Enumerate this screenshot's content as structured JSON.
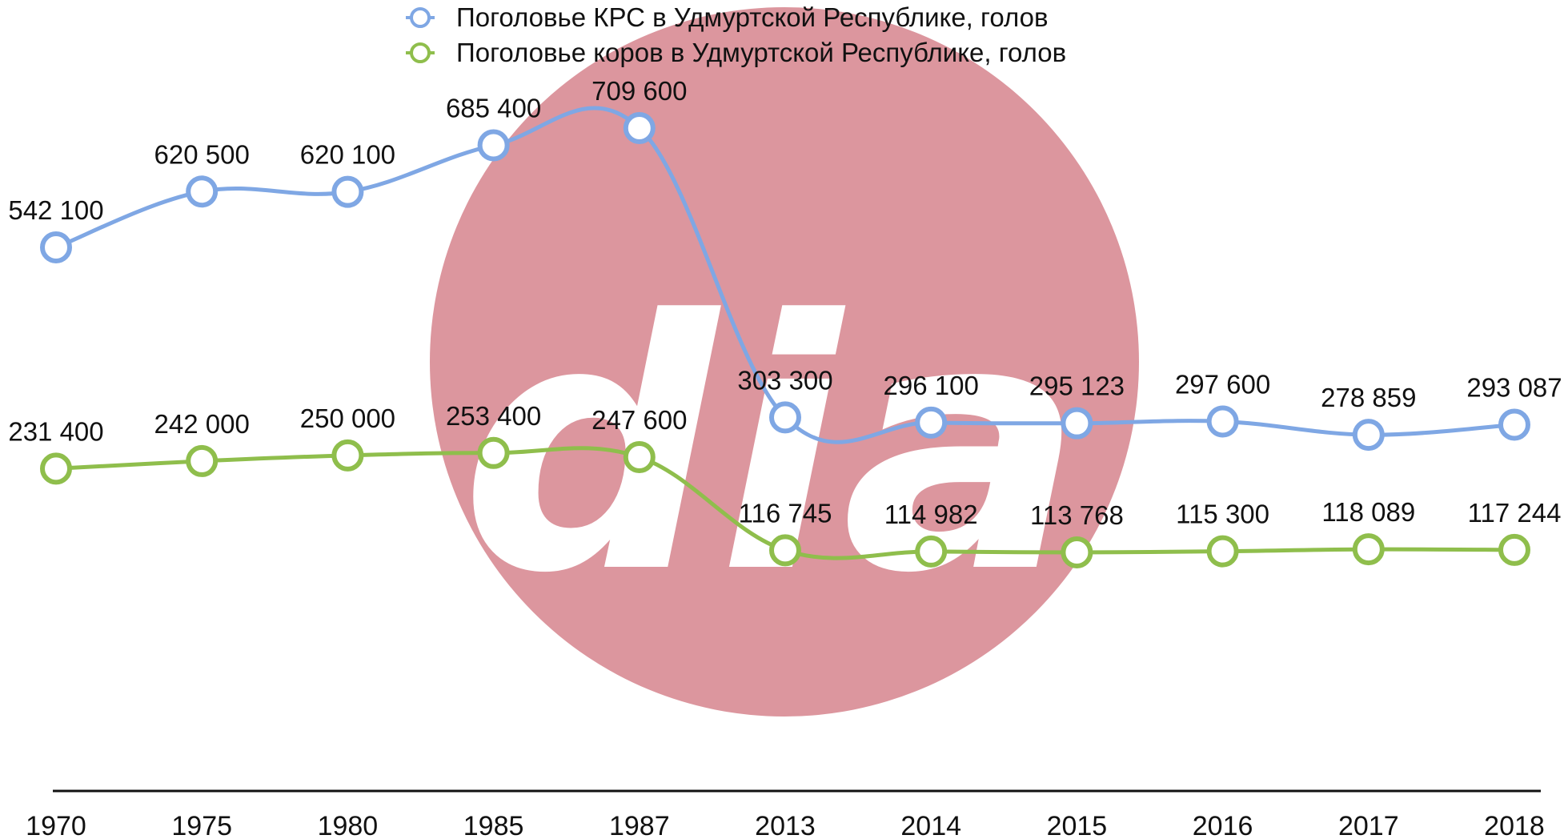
{
  "watermark": {
    "text": "dia",
    "circle_color": "#dc969e",
    "text_color": "#ffffff"
  },
  "chart_data": {
    "type": "line",
    "title": "",
    "xlabel": "",
    "ylabel": "",
    "categories": [
      "1970",
      "1975",
      "1980",
      "1985",
      "1987",
      "2013",
      "2014",
      "2015",
      "2016",
      "2017",
      "2018"
    ],
    "series": [
      {
        "name": "Поголовье КРС в Удмуртской Республике, голов",
        "color": "#7fa7e4",
        "values": [
          542100,
          620500,
          620100,
          685400,
          709600,
          303300,
          296100,
          295123,
          297600,
          278859,
          293087
        ],
        "labels": [
          "542 100",
          "620 500",
          "620 100",
          "685 400",
          "709 600",
          "303 300",
          "296 100",
          "295 123",
          "297 600",
          "278 859",
          "293 087"
        ]
      },
      {
        "name": "Поголовье коров в Удмуртской Республике, голов",
        "color": "#8fbe4c",
        "values": [
          231400,
          242000,
          250000,
          253400,
          247600,
          116745,
          114982,
          113768,
          115300,
          118089,
          117244
        ],
        "labels": [
          "231 400",
          "242 000",
          "250 000",
          "253 400",
          "247 600",
          "116 745",
          "114 982",
          "113 768",
          "115 300",
          "118 089",
          "117 244"
        ]
      }
    ],
    "legend": "top-center",
    "grid": false,
    "marker": "open-circle",
    "smooth": true
  }
}
